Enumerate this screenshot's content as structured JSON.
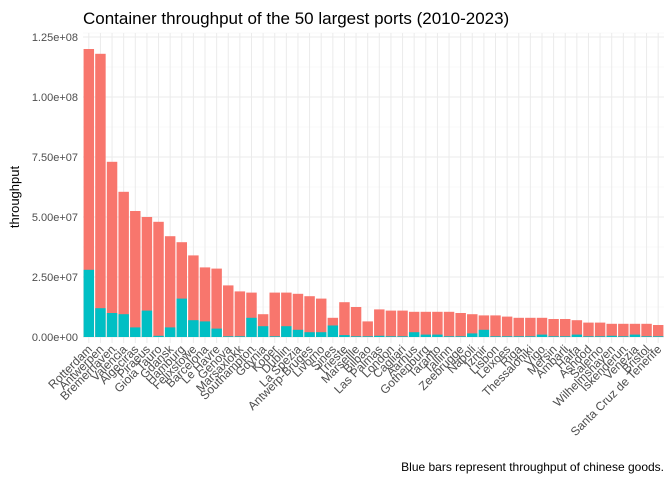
{
  "chart_data": {
    "type": "bar",
    "title": "Container throughput of the 50 largest ports (2010-2023)",
    "caption": "Blue bars represent throughput of chinese goods.",
    "xlabel": "",
    "ylabel": "throughput",
    "ylim": [
      0,
      125000000
    ],
    "y_ticks": [
      0,
      25000000,
      50000000,
      75000000,
      100000000,
      125000000
    ],
    "y_tick_labels": [
      "0.00e+00",
      "2.50e+07",
      "5.00e+07",
      "7.50e+07",
      "1.00e+08",
      "1.25e+08"
    ],
    "grid": true,
    "colors": {
      "total": "#F8766D",
      "chinese": "#00BFC4"
    },
    "categories": [
      "Rotterdam",
      "Antwerpen",
      "Bremerhaven",
      "Valencia",
      "Algeciras",
      "Piraeus",
      "Gioia Tauro",
      "Gdansk",
      "Hamburg",
      "Felixstowe",
      "Barcelona",
      "Le Havre",
      "Genova",
      "Marsaxlokk",
      "Southampton",
      "Gdynia",
      "Koper",
      "Dublin",
      "La Spezia",
      "Antwerp-Bruges",
      "Livorno",
      "Sines",
      "Trieste",
      "Marseille",
      "Bilbao",
      "Las Palmas",
      "London",
      "Cagliari",
      "Aarhus",
      "Gothenburg",
      "Taranto",
      "Tallinn",
      "Zeebrugge",
      "Napoli",
      "Izmir",
      "Lisbon",
      "Leixoes",
      "Riga",
      "Thessaloniki",
      "Vigo",
      "Mersin",
      "Ambarli",
      "Haifa",
      "Ashdod",
      "Salerno",
      "Wilhelmshaven",
      "Iskenderun",
      "Venezia",
      "Bristol",
      "Santa Cruz de Tenerife"
    ],
    "series": [
      {
        "values": [
          120000000,
          118000000,
          73000000,
          60500000,
          52500000,
          50000000,
          48000000,
          42000000,
          39500000,
          34000000,
          29000000,
          28500000,
          21500000,
          19000000,
          18500000,
          9500000,
          18500000,
          18500000,
          18000000,
          17000000,
          16000000,
          8000000,
          14500000,
          12500000,
          6500000,
          11500000,
          11000000,
          11000000,
          10500000,
          10500000,
          10500000,
          10500000,
          10000000,
          9500000,
          9000000,
          9000000,
          8500000,
          8000000,
          8000000,
          8000000,
          7500000,
          7500000,
          7000000,
          6000000,
          6000000,
          5500000,
          5500000,
          5500000,
          5500000,
          5000000
        ]
      },
      {
        "values": [
          28000000,
          12000000,
          10000000,
          9500000,
          4000000,
          11000000,
          500000,
          4000000,
          16000000,
          7000000,
          6500000,
          3500000,
          300000,
          300000,
          8000000,
          4500000,
          300000,
          4500000,
          3000000,
          2000000,
          2000000,
          4800000,
          800000,
          300000,
          300000,
          500000,
          300000,
          300000,
          2000000,
          1000000,
          1000000,
          300000,
          300000,
          1500000,
          3000000,
          300000,
          300000,
          300000,
          300000,
          1000000,
          300000,
          300000,
          1000000,
          300000,
          300000,
          500000,
          300000,
          1000000,
          300000,
          300000
        ]
      }
    ]
  }
}
